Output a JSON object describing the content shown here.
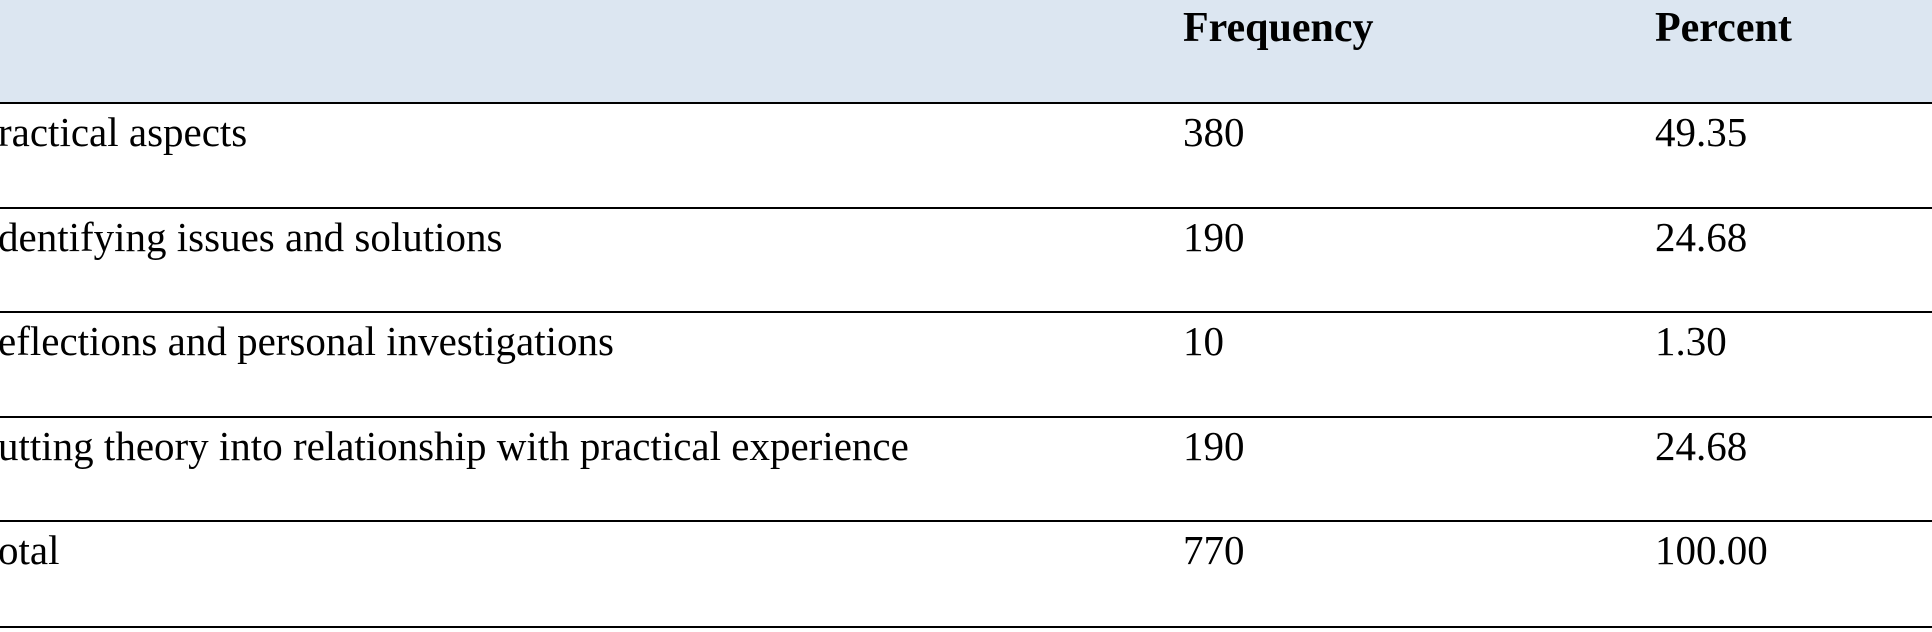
{
  "table": {
    "header_colour": "#dce6f1",
    "columns": [
      "",
      "Frequency",
      "Percent"
    ],
    "rows": [
      {
        "label": "ractical aspects",
        "frequency": "380",
        "percent": "49.35"
      },
      {
        "label": "dentifying issues and solutions",
        "frequency": "190",
        "percent": "24.68"
      },
      {
        "label": "eflections and personal investigations",
        "frequency": "10",
        "percent": "1.30"
      },
      {
        "label": "utting theory into relationship with practical experience",
        "frequency": "190",
        "percent": "24.68"
      },
      {
        "label": "otal",
        "frequency": "770",
        "percent": "100.00"
      }
    ]
  }
}
